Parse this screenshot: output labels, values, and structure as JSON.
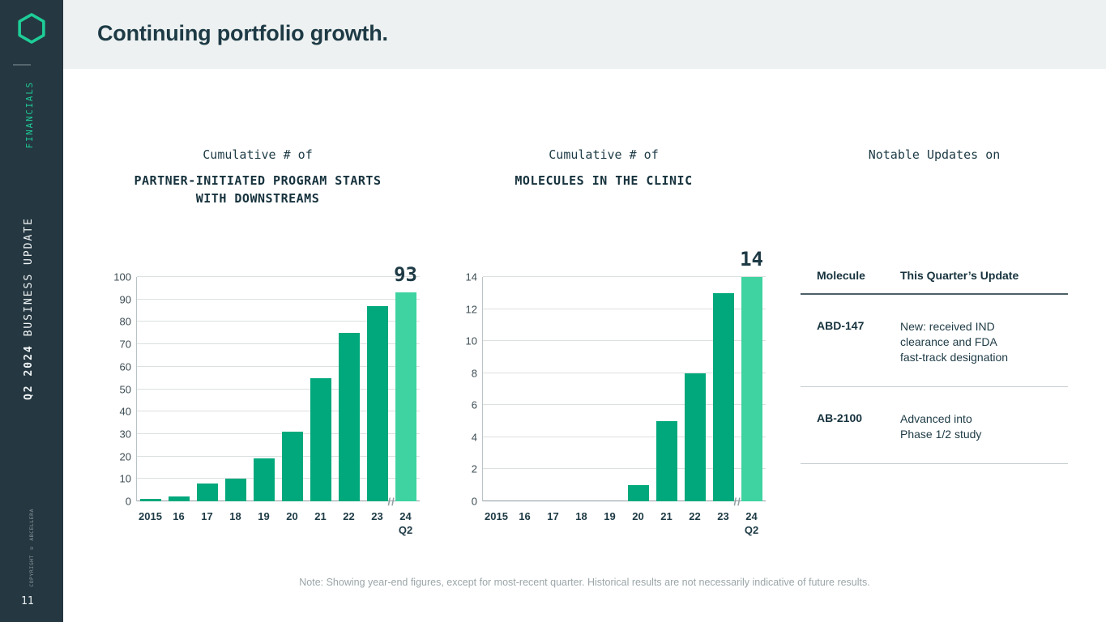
{
  "sidebar": {
    "section_label": "FINANCIALS",
    "deck_title_strong": "Q2 2024",
    "deck_title_rest": " BUSINESS UPDATE",
    "copyright": "COPYRIGHT © ABCELLERA",
    "page_number": "11"
  },
  "header": {
    "title": "Continuing portfolio growth."
  },
  "chart_data": [
    {
      "type": "bar",
      "subtitle": "Cumulative # of",
      "title": "PARTNER-INITIATED PROGRAM STARTS\nWITH DOWNSTREAMS",
      "categories": [
        "2015",
        "16",
        "17",
        "18",
        "19",
        "20",
        "21",
        "22",
        "23",
        "24\nQ2"
      ],
      "values": [
        1,
        2,
        8,
        10,
        19,
        31,
        55,
        75,
        87,
        93
      ],
      "ylim": [
        0,
        100
      ],
      "ytick_step": 10,
      "highlight_last": true,
      "last_value_label": "93",
      "axis_break_before_last": true,
      "bar_color": "#00a87c",
      "highlight_color": "#3ed3a0",
      "grid": true,
      "legend": "none"
    },
    {
      "type": "bar",
      "subtitle": "Cumulative # of",
      "title": "MOLECULES IN THE CLINIC",
      "categories": [
        "2015",
        "16",
        "17",
        "18",
        "19",
        "20",
        "21",
        "22",
        "23",
        "24\nQ2"
      ],
      "values": [
        0,
        0,
        0,
        0,
        0,
        1,
        5,
        8,
        13,
        14
      ],
      "ylim": [
        0,
        14
      ],
      "ytick_step": 2,
      "highlight_last": true,
      "last_value_label": "14",
      "axis_break_before_last": true,
      "bar_color": "#00a87c",
      "highlight_color": "#3ed3a0",
      "grid": true,
      "legend": "none"
    }
  ],
  "updates": {
    "heading": "Notable Updates on",
    "columns": [
      "Molecule",
      "This Quarter’s Update"
    ],
    "rows": [
      {
        "molecule": "ABD-147",
        "update": "New: received IND\nclearance and FDA\nfast-track designation"
      },
      {
        "molecule": "AB-2100",
        "update": "Advanced into\nPhase 1/2 study"
      }
    ]
  },
  "note": "Note: Showing year-end figures, except for most-recent quarter. Historical results are not necessarily indicative of future results."
}
